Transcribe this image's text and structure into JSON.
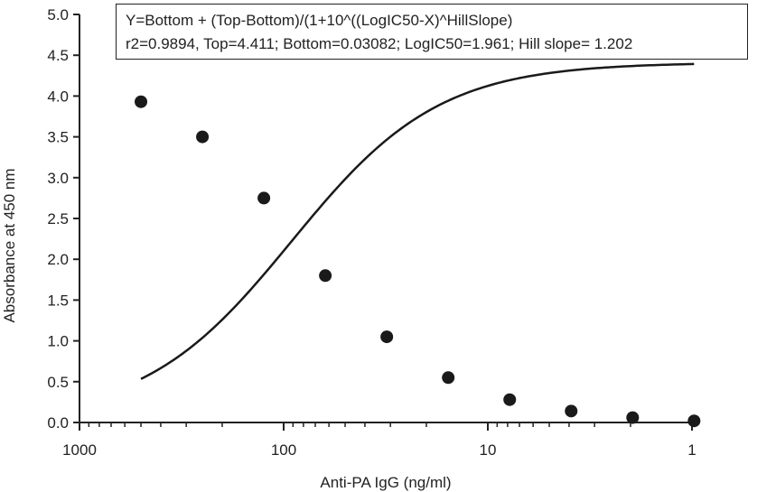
{
  "chart_data": {
    "type": "scatter",
    "title": "",
    "xlabel": "Anti-PA IgG (ng/ml)",
    "ylabel": "Absorbance at 450 nm",
    "x_scale": "log",
    "x_reversed": true,
    "xlim": [
      1000,
      1
    ],
    "ylim": [
      0,
      5
    ],
    "x_ticks": [
      1000,
      100,
      10,
      1
    ],
    "x_tick_labels": [
      "1000",
      "100",
      "10",
      "1"
    ],
    "y_ticks": [
      0,
      0.5,
      1,
      1.5,
      2,
      2.5,
      3,
      3.5,
      4,
      4.5,
      5
    ],
    "y_tick_labels": [
      "0.0",
      "0.5",
      "1.0",
      "1.5",
      "2.0",
      "2.5",
      "3.0",
      "3.5",
      "4.0",
      "4.5",
      "5.0"
    ],
    "grid": false,
    "legend": "none",
    "annotation": {
      "line1": "Y=Bottom + (Top-Bottom)/(1+10^((LogIC50-X)^HillSlope)",
      "line2": "r2=0.9894, Top=4.411; Bottom=0.03082; LogIC50=1.961; Hill slope= 1.202"
    },
    "fit": {
      "top": 4.411,
      "bottom": 0.03082,
      "log_ic50": 1.961,
      "hill_slope": 1.202
    },
    "series": [
      {
        "x": [
          500,
          250,
          125,
          62.5,
          31.25,
          15.625,
          7.8125,
          3.90625,
          1.953125,
          0.9765625
        ],
        "y": [
          3.93,
          3.5,
          2.75,
          1.8,
          1.05,
          0.55,
          0.28,
          0.14,
          0.06,
          0.02
        ]
      }
    ],
    "colors": {
      "marker": "#1a1a1a",
      "line": "#1a1a1a",
      "axis": "#222222"
    }
  }
}
